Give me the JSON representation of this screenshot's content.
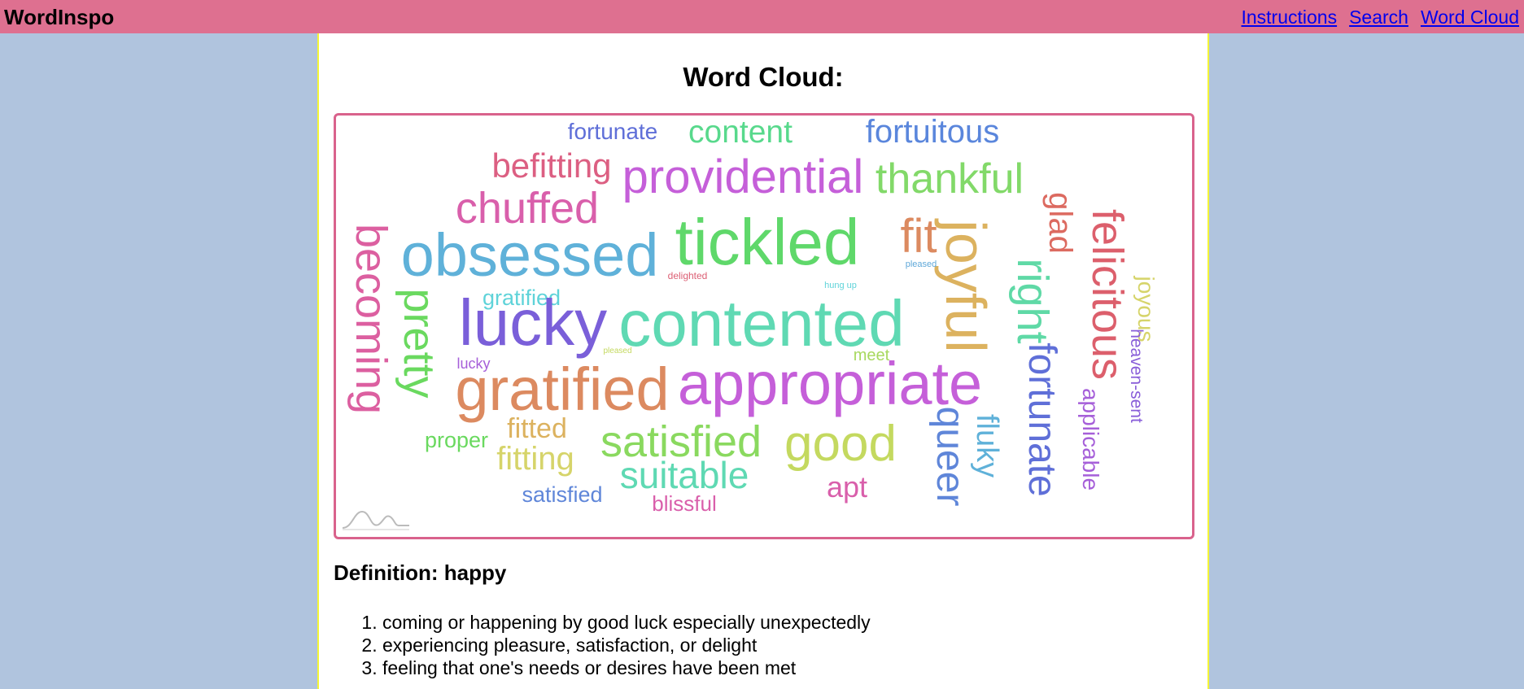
{
  "header": {
    "brand": "WordInspo",
    "nav": [
      "Instructions",
      "Search",
      "Word Cloud"
    ],
    "bg_color": "#de7090"
  },
  "page": {
    "title": "Word Cloud:",
    "background": "#b0c4de",
    "panel_border_color": "#f5f537"
  },
  "cloud": {
    "border_color": "#d9628c",
    "words": [
      {
        "text": "fortunate",
        "color": "#5f6fd8",
        "weight": 2
      },
      {
        "text": "content",
        "color": "#58d98c",
        "weight": 3
      },
      {
        "text": "fortuitous",
        "color": "#5a86dc",
        "weight": 3
      },
      {
        "text": "befitting",
        "color": "#dc5f82",
        "weight": 3
      },
      {
        "text": "providential",
        "color": "#c55fd9",
        "weight": 4
      },
      {
        "text": "thankful",
        "color": "#82d969",
        "weight": 4
      },
      {
        "text": "chuffed",
        "color": "#d95fab",
        "weight": 4
      },
      {
        "text": "tickled",
        "color": "#5fd86a",
        "weight": 6
      },
      {
        "text": "fit",
        "color": "#dc8a60",
        "weight": 4
      },
      {
        "text": "obsessed",
        "color": "#5fb1d9",
        "weight": 6
      },
      {
        "text": "joyful",
        "color": "#dcb25f",
        "weight": 5
      },
      {
        "text": "glad",
        "color": "#dc6a60",
        "weight": 3
      },
      {
        "text": "felicitous",
        "color": "#dc5f6c",
        "weight": 4
      },
      {
        "text": "becoming",
        "color": "#dc5fa0",
        "weight": 4
      },
      {
        "text": "right",
        "color": "#5fd9a6",
        "weight": 4
      },
      {
        "text": "pleased",
        "color": "#5fa8d9",
        "weight": 1
      },
      {
        "text": "delighted",
        "color": "#dc5f74",
        "weight": 1
      },
      {
        "text": "hung up",
        "color": "#5fd3d9",
        "weight": 1
      },
      {
        "text": "joyous",
        "color": "#d6d46a",
        "weight": 2
      },
      {
        "text": "gratified",
        "color": "#5fd3d9",
        "weight": 2
      },
      {
        "text": "pretty",
        "color": "#6ad95f",
        "weight": 4
      },
      {
        "text": "lucky",
        "color": "#7a5fd9",
        "weight": 6
      },
      {
        "text": "contented",
        "color": "#5fd9b3",
        "weight": 6
      },
      {
        "text": "heaven-sent",
        "color": "#8a5fd9",
        "weight": 2
      },
      {
        "text": "pleased",
        "color": "#c4d95f",
        "weight": 1
      },
      {
        "text": "meet",
        "color": "#a8d95f",
        "weight": 2
      },
      {
        "text": "lucky",
        "color": "#a65fd9",
        "weight": 2
      },
      {
        "text": "gratified",
        "color": "#dc8a60",
        "weight": 6
      },
      {
        "text": "appropriate",
        "color": "#c55fd9",
        "weight": 6
      },
      {
        "text": "fortunate",
        "color": "#5f6fd8",
        "weight": 4
      },
      {
        "text": "applicable",
        "color": "#a65fd9",
        "weight": 2
      },
      {
        "text": "fluky",
        "color": "#5fb1d9",
        "weight": 3
      },
      {
        "text": "queer",
        "color": "#5f86d9",
        "weight": 4
      },
      {
        "text": "fitted",
        "color": "#dcb25f",
        "weight": 3
      },
      {
        "text": "proper",
        "color": "#6ad95f",
        "weight": 2
      },
      {
        "text": "fitting",
        "color": "#d6d46a",
        "weight": 3
      },
      {
        "text": "satisfied",
        "color": "#8ad95f",
        "weight": 4
      },
      {
        "text": "good",
        "color": "#c4d95f",
        "weight": 5
      },
      {
        "text": "suitable",
        "color": "#5fd9b3",
        "weight": 4
      },
      {
        "text": "apt",
        "color": "#d95fab",
        "weight": 3
      },
      {
        "text": "satisfied",
        "color": "#5f86d9",
        "weight": 2
      },
      {
        "text": "blissful",
        "color": "#d95fab",
        "weight": 2
      }
    ]
  },
  "definition": {
    "title": "Definition: happy",
    "items": [
      "coming or happening by good luck especially unexpectedly",
      "experiencing pleasure, satisfaction, or delight",
      "feeling that one's needs or desires have been met"
    ]
  }
}
